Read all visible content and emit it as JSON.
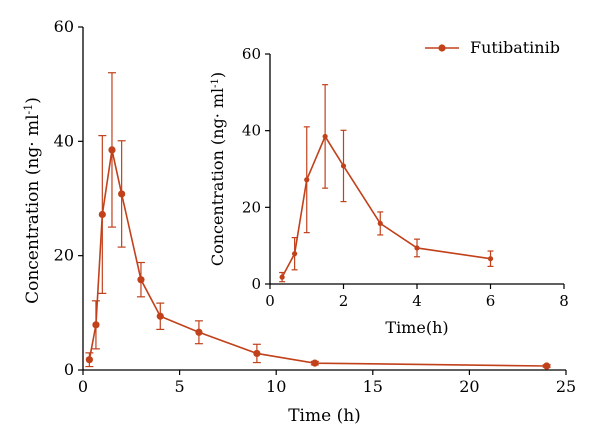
{
  "chart_data": [
    {
      "type": "line",
      "xlabel": "Time (h)",
      "ylabel": "Concentration (ng· ml",
      "ylabel_sup": "-1",
      "ylabel_close": ")",
      "xlim": [
        0,
        25
      ],
      "ylim": [
        0,
        60
      ],
      "xticks": [
        0,
        5,
        10,
        15,
        20,
        25
      ],
      "yticks": [
        0,
        20,
        40,
        60
      ],
      "grid": false,
      "legend": "top-right",
      "series": [
        {
          "name": "Futibatinib",
          "color": "#c1411b",
          "x": [
            0.33,
            0.67,
            1,
            1.5,
            2,
            3,
            4,
            6,
            9,
            12,
            24
          ],
          "y": [
            1.8,
            7.9,
            27.2,
            38.5,
            30.8,
            15.8,
            9.4,
            6.6,
            2.9,
            1.2,
            0.7
          ],
          "error": [
            1.2,
            4.2,
            13.8,
            13.5,
            9.3,
            3.0,
            2.3,
            2.0,
            1.6,
            0.3,
            0.2
          ]
        }
      ]
    },
    {
      "type": "line",
      "xlabel": "Time(h)",
      "ylabel": "Concentration (ng· ml",
      "ylabel_sup": "-1",
      "ylabel_close": ")",
      "xlim": [
        0,
        8
      ],
      "ylim": [
        0,
        60
      ],
      "xticks": [
        0,
        2,
        4,
        6,
        8
      ],
      "yticks": [
        0,
        20,
        40,
        60
      ],
      "grid": false,
      "series": [
        {
          "name": "Futibatinib",
          "color": "#c1411b",
          "x": [
            0.33,
            0.67,
            1,
            1.5,
            2,
            3,
            4,
            6
          ],
          "y": [
            1.8,
            7.9,
            27.2,
            38.5,
            30.8,
            15.8,
            9.4,
            6.6
          ],
          "error": [
            1.2,
            4.2,
            13.8,
            13.5,
            9.3,
            3.0,
            2.3,
            2.0
          ]
        }
      ]
    }
  ]
}
